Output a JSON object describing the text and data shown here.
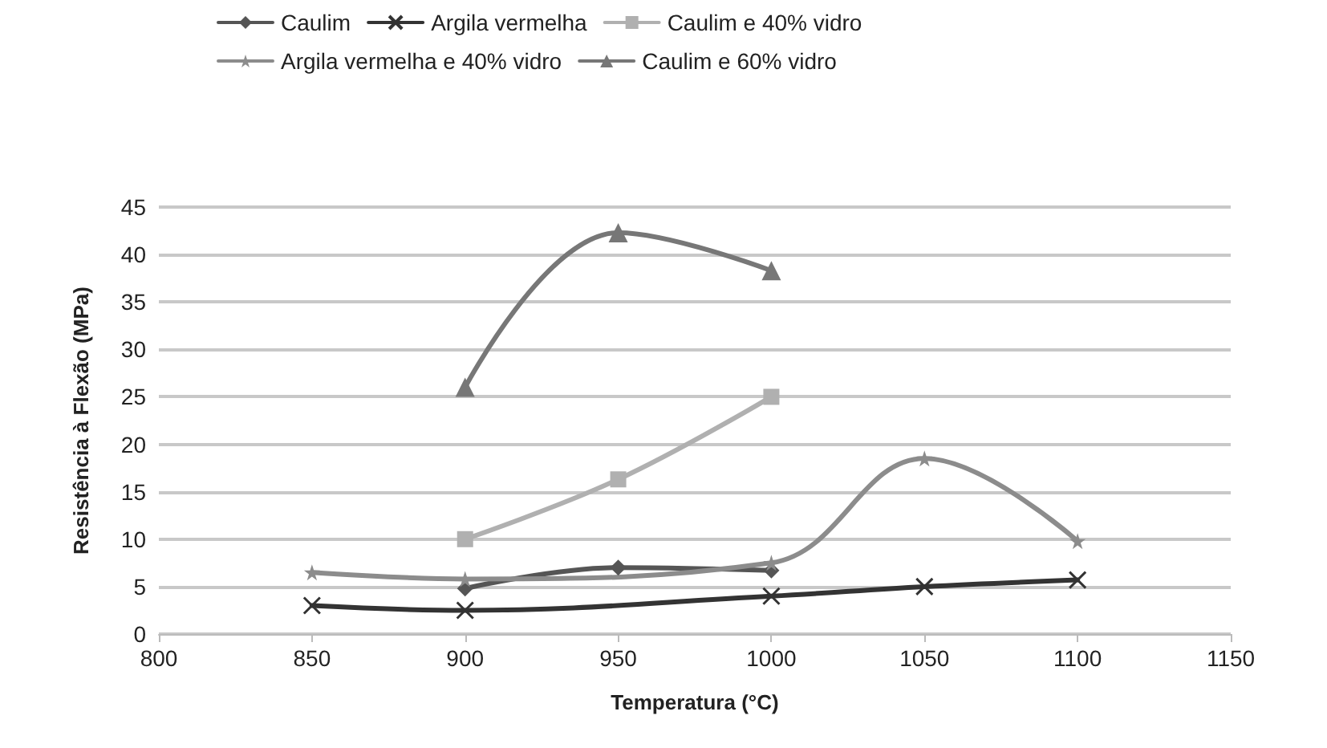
{
  "chart_data": {
    "type": "line",
    "xlabel": "Temperatura (°C)",
    "ylabel": "Resistência à Flexão (MPa)",
    "xlim": [
      800,
      1150
    ],
    "xticks": [
      800,
      850,
      900,
      950,
      1000,
      1050,
      1100,
      1150
    ],
    "ylim": [
      0,
      45
    ],
    "yticks": [
      0,
      5,
      10,
      15,
      20,
      25,
      30,
      35,
      40,
      45
    ],
    "grid": "y",
    "legend": "top",
    "series": [
      {
        "name": "Caulim",
        "color": "#555555",
        "marker": "diamond",
        "x": [
          900,
          950,
          1000
        ],
        "values": [
          4.8,
          7,
          6.7
        ]
      },
      {
        "name": "Argila vermelha",
        "color": "#333333",
        "marker": "cross",
        "x": [
          850,
          900,
          1000,
          1050,
          1100
        ],
        "values": [
          3,
          2.5,
          4,
          5,
          5.7
        ]
      },
      {
        "name": "Caulim e 40% vidro",
        "color": "#b0b0b0",
        "marker": "square",
        "x": [
          900,
          950,
          1000
        ],
        "values": [
          10,
          16.3,
          25
        ]
      },
      {
        "name": "Argila vermelha e 40% vidro",
        "color": "#8c8c8c",
        "marker": "star",
        "x": [
          850,
          900,
          1000,
          1050,
          1100
        ],
        "values": [
          6.5,
          5.8,
          7.5,
          18.5,
          9.8
        ]
      },
      {
        "name": "Caulim e 60% vidro",
        "color": "#777777",
        "marker": "triangle",
        "x": [
          900,
          950,
          1000
        ],
        "values": [
          26,
          42.3,
          38.3
        ]
      }
    ]
  }
}
